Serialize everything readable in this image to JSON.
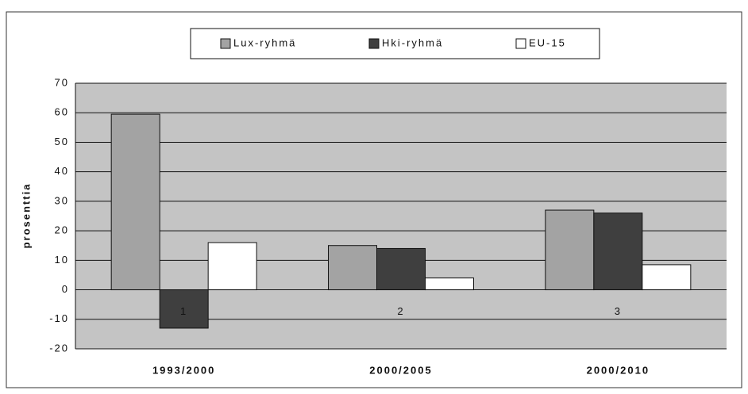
{
  "chart_data": {
    "type": "bar",
    "y_label": "prosenttia",
    "categories": [
      "1",
      "2",
      "3"
    ],
    "category_labels": [
      "1993/2000",
      "2000/2005",
      "2000/2010"
    ],
    "series": [
      {
        "name": "Lux-ryhmä",
        "color": "#a3a3a3",
        "values": [
          59.5,
          15,
          27
        ]
      },
      {
        "name": "Hki-ryhmä",
        "color": "#3f3f3f",
        "values": [
          -13,
          14,
          26
        ]
      },
      {
        "name": "EU-15",
        "color": "#ffffff",
        "values": [
          16,
          4,
          8.5
        ]
      }
    ],
    "ylim": [
      -20,
      70
    ],
    "yticks": [
      -20,
      -10,
      0,
      10,
      20,
      30,
      40,
      50,
      60,
      70
    ],
    "grid": true
  }
}
